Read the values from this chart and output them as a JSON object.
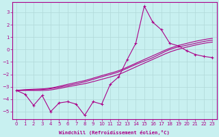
{
  "xlabel": "Windchill (Refroidissement éolien,°C)",
  "bg_color": "#c8f0f0",
  "line_color": "#aa0088",
  "grid_color": "#b0d8d8",
  "xlim": [
    -0.5,
    23.5
  ],
  "ylim": [
    -5.6,
    3.8
  ],
  "xticks": [
    0,
    1,
    2,
    3,
    4,
    5,
    6,
    7,
    8,
    9,
    10,
    11,
    12,
    13,
    14,
    15,
    16,
    17,
    18,
    19,
    20,
    21,
    22,
    23
  ],
  "yticks": [
    -5,
    -4,
    -3,
    -2,
    -1,
    0,
    1,
    2,
    3
  ],
  "series_main_x": [
    0,
    1,
    2,
    3,
    4,
    5,
    6,
    7,
    8,
    9,
    10,
    11,
    12,
    13,
    14,
    15,
    16,
    17,
    18,
    19,
    20,
    21,
    22,
    23
  ],
  "series_main_y": [
    -3.3,
    -3.6,
    -4.5,
    -3.7,
    -5.0,
    -4.3,
    -4.2,
    -4.4,
    -5.3,
    -4.2,
    -4.4,
    -2.8,
    -2.2,
    -0.8,
    0.5,
    3.5,
    2.2,
    1.6,
    0.5,
    0.3,
    -0.1,
    -0.4,
    -0.55,
    -0.65
  ],
  "curve1_x": [
    0,
    2,
    4,
    6,
    8,
    10,
    12,
    14,
    16,
    18,
    20,
    22,
    23
  ],
  "curve1_y": [
    -3.3,
    -3.2,
    -3.1,
    -2.8,
    -2.5,
    -2.1,
    -1.7,
    -1.1,
    -0.5,
    0.1,
    0.5,
    0.8,
    0.9
  ],
  "curve2_x": [
    0,
    2,
    4,
    6,
    8,
    10,
    12,
    14,
    16,
    18,
    20,
    22,
    23
  ],
  "curve2_y": [
    -3.3,
    -3.25,
    -3.15,
    -2.9,
    -2.6,
    -2.2,
    -1.8,
    -1.2,
    -0.65,
    0.0,
    0.35,
    0.65,
    0.75
  ],
  "curve3_x": [
    0,
    2,
    4,
    6,
    8,
    10,
    12,
    14,
    16,
    18,
    20,
    22,
    23
  ],
  "curve3_y": [
    -3.3,
    -3.3,
    -3.25,
    -3.0,
    -2.75,
    -2.4,
    -2.0,
    -1.4,
    -0.8,
    -0.2,
    0.2,
    0.5,
    0.6
  ]
}
